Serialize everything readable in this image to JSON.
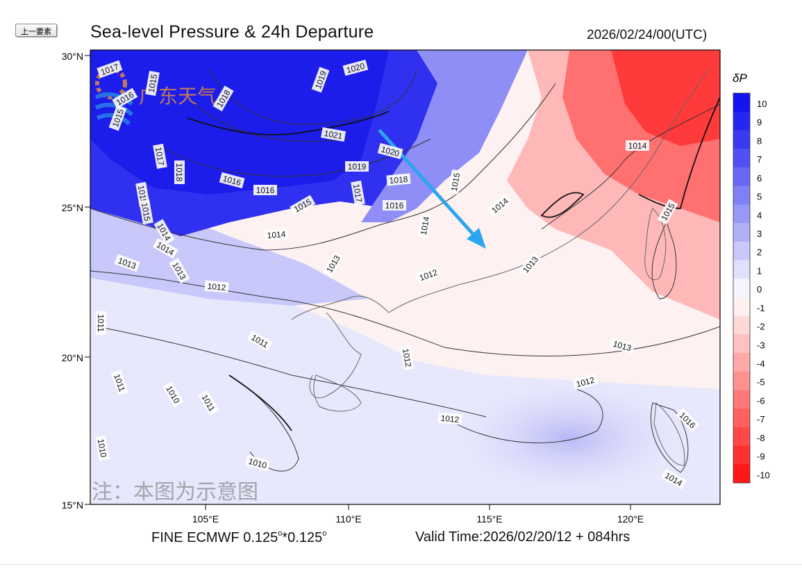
{
  "toolbar": {
    "prev_button": "上一要素"
  },
  "header": {
    "title": "Sea-level Pressure & 24h Departure",
    "datetime": "2026/02/24/00(UTC)"
  },
  "footer": {
    "model_name": "FINE ECMWF 0.125",
    "model_sep": "*0.125",
    "deg": "o",
    "valid_time": "Valid Time:2026/02/20/12 + 084hrs"
  },
  "map": {
    "lat_labels": [
      "30°N",
      "25°N",
      "20°N",
      "15°N"
    ],
    "lon_labels": [
      "105°E",
      "110°E",
      "115°E",
      "120°E"
    ],
    "watermark_logo": "广东天气",
    "watermark_note": "注：本图为示意图",
    "isobar_labels": [
      "1017",
      "1019",
      "1020",
      "1018",
      "1021",
      "1020",
      "1019",
      "1018",
      "1017",
      "1016",
      "1015",
      "1016",
      "1018",
      "1017",
      "1016",
      "1015",
      "1014",
      "1014",
      "1013",
      "1013",
      "1012",
      "1013",
      "1011",
      "1011",
      "1012",
      "1011",
      "1010",
      "1011",
      "1010",
      "1010",
      "1012",
      "1013",
      "1012",
      "1012",
      "1013",
      "1014",
      "1014",
      "1015",
      "1014",
      "1015",
      "1014",
      "1015",
      "1014",
      "1016",
      "1015",
      "1016",
      "1015"
    ],
    "colors": {
      "high": "#1f2fe8",
      "low": "#ff2020",
      "neutral": "#fff4f4",
      "arrow": "#2aa6f0"
    }
  },
  "colorbar": {
    "label": "δP",
    "ticks": [
      "10",
      "9",
      "8",
      "7",
      "6",
      "5",
      "4",
      "3",
      "2",
      "1",
      "0",
      "-1",
      "-2",
      "-3",
      "-4",
      "-5",
      "-6",
      "-7",
      "-8",
      "-9",
      "-10"
    ],
    "colors": [
      "#1414f0",
      "#2626f2",
      "#3a3af3",
      "#5050f4",
      "#6868f5",
      "#8080f6",
      "#9898f7",
      "#b0b0f8",
      "#c8c8fa",
      "#e0e0fc",
      "#f4f4ff",
      "#fff0f0",
      "#ffd8d8",
      "#ffc0c0",
      "#ffa8a8",
      "#ff9090",
      "#ff7878",
      "#ff6060",
      "#ff4848",
      "#ff3030",
      "#ff1818"
    ]
  }
}
